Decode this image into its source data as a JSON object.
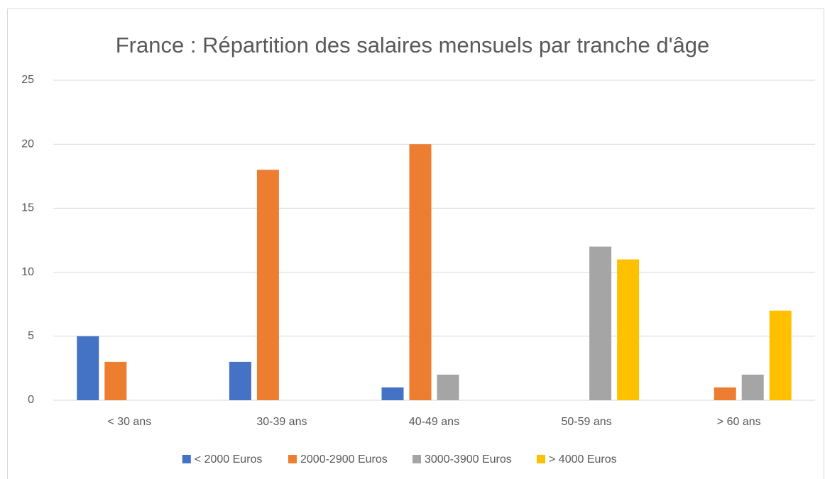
{
  "chart_data": {
    "type": "bar",
    "title": "France : Répartition des salaires mensuels par tranche d'âge",
    "categories": [
      "< 30 ans",
      "30-39 ans",
      "40-49 ans",
      "50-59 ans",
      "> 60 ans"
    ],
    "series": [
      {
        "name": "< 2000 Euros",
        "color": "#4472c4",
        "values": [
          5,
          3,
          1,
          0,
          0
        ]
      },
      {
        "name": "2000-2900 Euros",
        "color": "#ed7d31",
        "values": [
          3,
          18,
          20,
          0,
          1
        ]
      },
      {
        "name": "3000-3900 Euros",
        "color": "#a5a5a5",
        "values": [
          0,
          0,
          2,
          12,
          2
        ]
      },
      {
        "name": "> 4000 Euros",
        "color": "#ffc000",
        "values": [
          0,
          0,
          0,
          11,
          7
        ]
      }
    ],
    "ylim": [
      0,
      25
    ],
    "yticks": [
      0,
      5,
      10,
      15,
      20,
      25
    ],
    "grid": true,
    "legend": "bottom"
  }
}
